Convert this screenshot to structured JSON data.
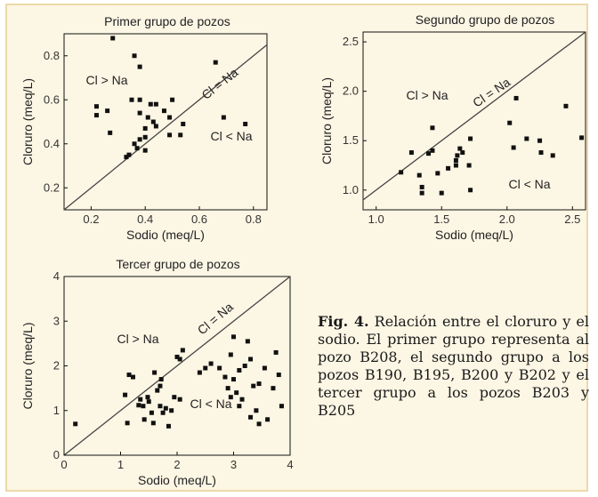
{
  "colors": {
    "background": "#fcf6e4",
    "border": "#ecd9a8",
    "ink": "#111111"
  },
  "caption": {
    "label": "Fig. 4.",
    "text": "Relación entre el cloruro y el sodio. El primer grupo representa al pozo B208, el segundo grupo a los pozos B190, B195, B200 y B202 y el tercer grupo a los pozos B203 y B205"
  },
  "chart_data": [
    {
      "type": "scatter",
      "title": "Primer grupo de pozos",
      "xlabel": "Sodio (meq/L)",
      "ylabel": "Cloruro (meq/L)",
      "xlim": [
        0.1,
        0.85
      ],
      "ylim": [
        0.1,
        0.9
      ],
      "xticks": [
        0.2,
        0.4,
        0.6,
        0.8
      ],
      "yticks": [
        0.2,
        0.4,
        0.6,
        0.8
      ],
      "xtick_labels": [
        "0.2",
        "0.4",
        "0.6",
        "0.8"
      ],
      "ytick_labels": [
        "0.2",
        "0.4",
        "0.6",
        "0.8"
      ],
      "annotations": [
        "Cl > Na",
        "Cl = Na",
        "Cl < Na"
      ],
      "reference_line": "y = x",
      "points": [
        [
          0.28,
          0.88
        ],
        [
          0.36,
          0.8
        ],
        [
          0.38,
          0.75
        ],
        [
          0.22,
          0.57
        ],
        [
          0.22,
          0.53
        ],
        [
          0.26,
          0.55
        ],
        [
          0.27,
          0.45
        ],
        [
          0.35,
          0.6
        ],
        [
          0.38,
          0.6
        ],
        [
          0.42,
          0.58
        ],
        [
          0.44,
          0.58
        ],
        [
          0.38,
          0.54
        ],
        [
          0.41,
          0.52
        ],
        [
          0.43,
          0.5
        ],
        [
          0.44,
          0.48
        ],
        [
          0.4,
          0.47
        ],
        [
          0.38,
          0.42
        ],
        [
          0.4,
          0.43
        ],
        [
          0.36,
          0.4
        ],
        [
          0.37,
          0.38
        ],
        [
          0.4,
          0.37
        ],
        [
          0.34,
          0.35
        ],
        [
          0.33,
          0.34
        ],
        [
          0.5,
          0.6
        ],
        [
          0.47,
          0.55
        ],
        [
          0.49,
          0.52
        ],
        [
          0.49,
          0.44
        ],
        [
          0.53,
          0.44
        ],
        [
          0.54,
          0.49
        ],
        [
          0.66,
          0.77
        ],
        [
          0.69,
          0.52
        ],
        [
          0.77,
          0.49
        ]
      ]
    },
    {
      "type": "scatter",
      "title": "Segundo grupo de pozos",
      "xlabel": "Sodio (meq/L)",
      "ylabel": "Cloruro (meq/L)",
      "xlim": [
        0.9,
        2.6
      ],
      "ylim": [
        0.8,
        2.6
      ],
      "xticks": [
        1.0,
        1.5,
        2.0,
        2.5
      ],
      "yticks": [
        1.0,
        1.5,
        2.0,
        2.5
      ],
      "xtick_labels": [
        "1.0",
        "1.5",
        "2.0",
        "2.5"
      ],
      "ytick_labels": [
        "1.0",
        "1.5",
        "2.0",
        "2.5"
      ],
      "annotations": [
        "Cl > Na",
        "Cl = Na",
        "Cl < Na"
      ],
      "reference_line": "y = x",
      "points": [
        [
          1.19,
          1.18
        ],
        [
          1.27,
          1.38
        ],
        [
          1.33,
          1.15
        ],
        [
          1.35,
          1.03
        ],
        [
          1.35,
          0.97
        ],
        [
          1.4,
          1.37
        ],
        [
          1.43,
          1.63
        ],
        [
          1.43,
          1.4
        ],
        [
          1.47,
          1.17
        ],
        [
          1.5,
          0.97
        ],
        [
          1.55,
          1.22
        ],
        [
          1.61,
          1.3
        ],
        [
          1.62,
          1.35
        ],
        [
          1.64,
          1.42
        ],
        [
          1.61,
          1.25
        ],
        [
          1.66,
          1.38
        ],
        [
          1.71,
          1.25
        ],
        [
          1.72,
          1.52
        ],
        [
          1.72,
          1.0
        ],
        [
          2.02,
          1.68
        ],
        [
          2.05,
          1.43
        ],
        [
          2.07,
          1.93
        ],
        [
          2.15,
          1.52
        ],
        [
          2.25,
          1.5
        ],
        [
          2.26,
          1.38
        ],
        [
          2.35,
          1.35
        ],
        [
          2.45,
          1.85
        ],
        [
          2.57,
          1.53
        ]
      ]
    },
    {
      "type": "scatter",
      "title": "Tercer grupo de pozos",
      "xlabel": "Sodio (meq/L)",
      "ylabel": "Cloruro (meq/L)",
      "xlim": [
        0,
        4
      ],
      "ylim": [
        0,
        4
      ],
      "xticks": [
        0,
        1,
        2,
        3,
        4
      ],
      "yticks": [
        0,
        1,
        2,
        3,
        4
      ],
      "xtick_labels": [
        "0",
        "1",
        "2",
        "3",
        "4"
      ],
      "ytick_labels": [
        "0",
        "1",
        "2",
        "3",
        "4"
      ],
      "annotations": [
        "Cl > Na",
        "Cl = Na",
        "Cl < Na"
      ],
      "reference_line": "y = x",
      "points": [
        [
          0.2,
          0.7
        ],
        [
          1.08,
          1.35
        ],
        [
          1.15,
          1.8
        ],
        [
          1.22,
          1.75
        ],
        [
          1.12,
          0.72
        ],
        [
          1.35,
          1.25
        ],
        [
          1.32,
          1.12
        ],
        [
          1.4,
          1.1
        ],
        [
          1.48,
          1.3
        ],
        [
          1.5,
          1.2
        ],
        [
          1.42,
          0.8
        ],
        [
          1.55,
          0.95
        ],
        [
          1.58,
          0.72
        ],
        [
          1.6,
          1.85
        ],
        [
          1.65,
          1.45
        ],
        [
          1.7,
          1.55
        ],
        [
          1.72,
          1.7
        ],
        [
          1.7,
          1.1
        ],
        [
          1.75,
          0.95
        ],
        [
          1.8,
          1.05
        ],
        [
          1.85,
          0.65
        ],
        [
          1.9,
          1.0
        ],
        [
          1.95,
          1.3
        ],
        [
          2.0,
          2.2
        ],
        [
          2.05,
          2.15
        ],
        [
          2.1,
          2.35
        ],
        [
          2.05,
          1.25
        ],
        [
          2.4,
          1.85
        ],
        [
          2.5,
          1.95
        ],
        [
          2.6,
          2.05
        ],
        [
          2.75,
          1.95
        ],
        [
          2.85,
          1.75
        ],
        [
          2.9,
          1.5
        ],
        [
          2.95,
          2.25
        ],
        [
          2.95,
          1.3
        ],
        [
          3.0,
          2.65
        ],
        [
          3.0,
          1.7
        ],
        [
          3.05,
          1.4
        ],
        [
          3.1,
          1.1
        ],
        [
          3.1,
          1.9
        ],
        [
          3.15,
          1.25
        ],
        [
          3.2,
          2.0
        ],
        [
          3.25,
          2.55
        ],
        [
          3.3,
          0.85
        ],
        [
          3.3,
          2.15
        ],
        [
          3.35,
          1.55
        ],
        [
          3.4,
          1.0
        ],
        [
          3.45,
          1.6
        ],
        [
          3.45,
          0.7
        ],
        [
          3.55,
          1.95
        ],
        [
          3.6,
          0.8
        ],
        [
          3.7,
          1.5
        ],
        [
          3.75,
          2.3
        ],
        [
          3.8,
          1.8
        ],
        [
          3.85,
          1.1
        ]
      ]
    }
  ]
}
